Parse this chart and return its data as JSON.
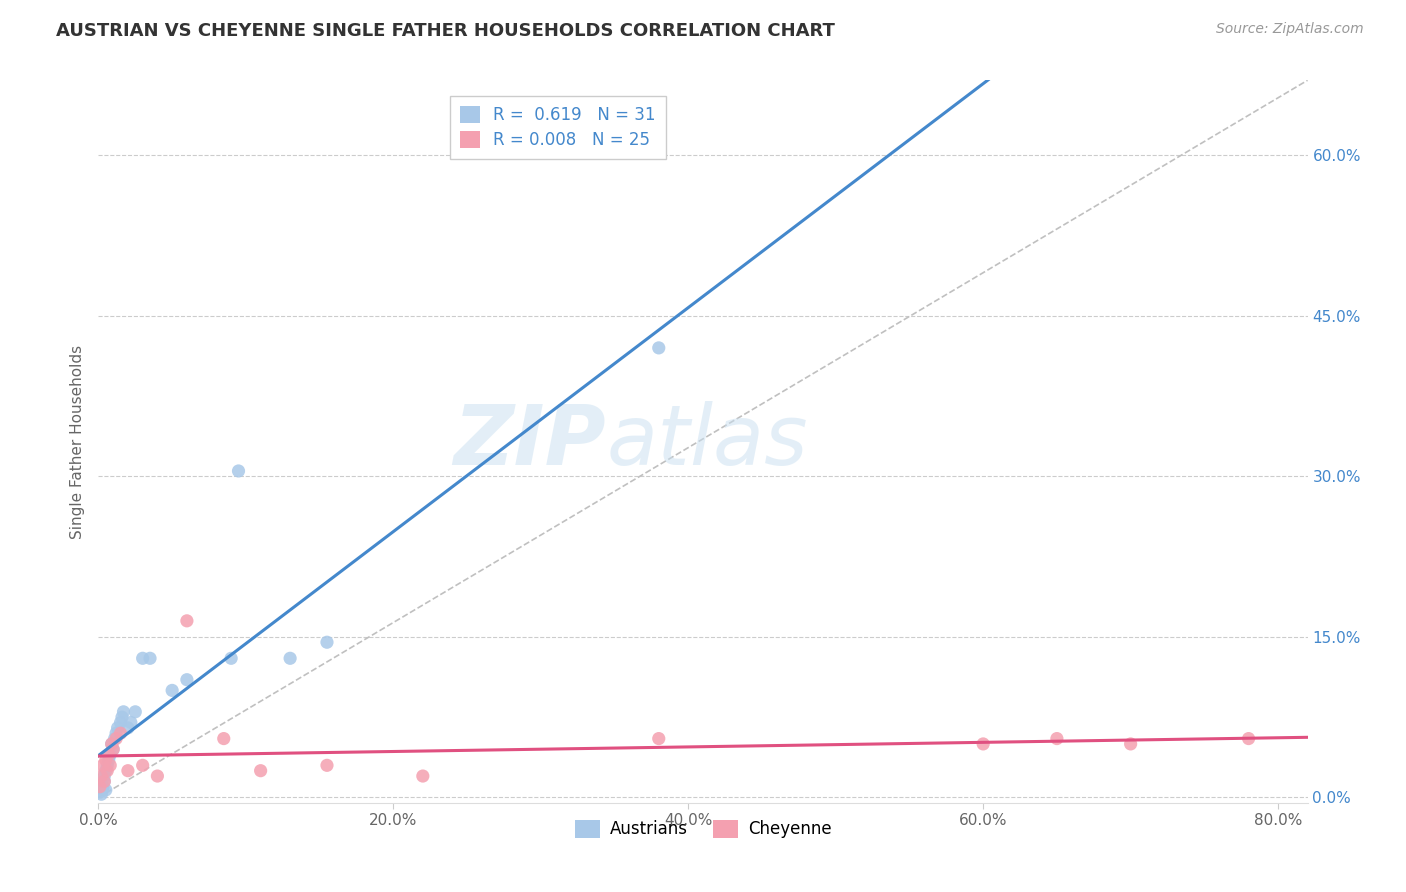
{
  "title": "AUSTRIAN VS CHEYENNE SINGLE FATHER HOUSEHOLDS CORRELATION CHART",
  "source": "Source: ZipAtlas.com",
  "ylabel": "Single Father Households",
  "xlim": [
    0.0,
    0.82
  ],
  "ylim": [
    -0.005,
    0.67
  ],
  "diagonal_line_x": [
    0.0,
    0.82
  ],
  "diagonal_line_y": [
    0.0,
    0.67
  ],
  "legend_r_austrians": "0.619",
  "legend_n_austrians": "31",
  "legend_r_cheyenne": "0.008",
  "legend_n_cheyenne": "25",
  "austrians_color": "#a8c8e8",
  "cheyenne_color": "#f4a0b0",
  "austrians_line_color": "#4488cc",
  "cheyenne_line_color": "#e05080",
  "diagonal_color": "#c0c0c0",
  "watermark_zip": "ZIP",
  "watermark_atlas": "atlas",
  "austrians_x": [
    0.001,
    0.002,
    0.003,
    0.003,
    0.004,
    0.004,
    0.005,
    0.005,
    0.006,
    0.007,
    0.008,
    0.009,
    0.01,
    0.011,
    0.012,
    0.013,
    0.015,
    0.016,
    0.017,
    0.02,
    0.022,
    0.025,
    0.03,
    0.035,
    0.05,
    0.06,
    0.09,
    0.095,
    0.13,
    0.155,
    0.38
  ],
  "austrians_y": [
    0.005,
    0.003,
    0.008,
    0.01,
    0.015,
    0.02,
    0.007,
    0.025,
    0.03,
    0.035,
    0.04,
    0.05,
    0.045,
    0.055,
    0.06,
    0.065,
    0.07,
    0.075,
    0.08,
    0.065,
    0.07,
    0.08,
    0.13,
    0.13,
    0.1,
    0.11,
    0.13,
    0.305,
    0.13,
    0.145,
    0.42
  ],
  "cheyenne_x": [
    0.001,
    0.002,
    0.003,
    0.004,
    0.005,
    0.006,
    0.007,
    0.008,
    0.009,
    0.01,
    0.012,
    0.015,
    0.02,
    0.03,
    0.04,
    0.06,
    0.085,
    0.11,
    0.155,
    0.22,
    0.38,
    0.6,
    0.65,
    0.7,
    0.78
  ],
  "cheyenne_y": [
    0.01,
    0.02,
    0.03,
    0.015,
    0.035,
    0.025,
    0.04,
    0.03,
    0.05,
    0.045,
    0.055,
    0.06,
    0.025,
    0.03,
    0.02,
    0.165,
    0.055,
    0.025,
    0.03,
    0.02,
    0.055,
    0.05,
    0.055,
    0.05,
    0.055
  ],
  "marker_size": 90,
  "background_color": "#ffffff",
  "grid_color": "#cccccc",
  "yticks": [
    0.0,
    0.15,
    0.3,
    0.45,
    0.6
  ],
  "xticks": [
    0.0,
    0.2,
    0.4,
    0.6,
    0.8
  ]
}
